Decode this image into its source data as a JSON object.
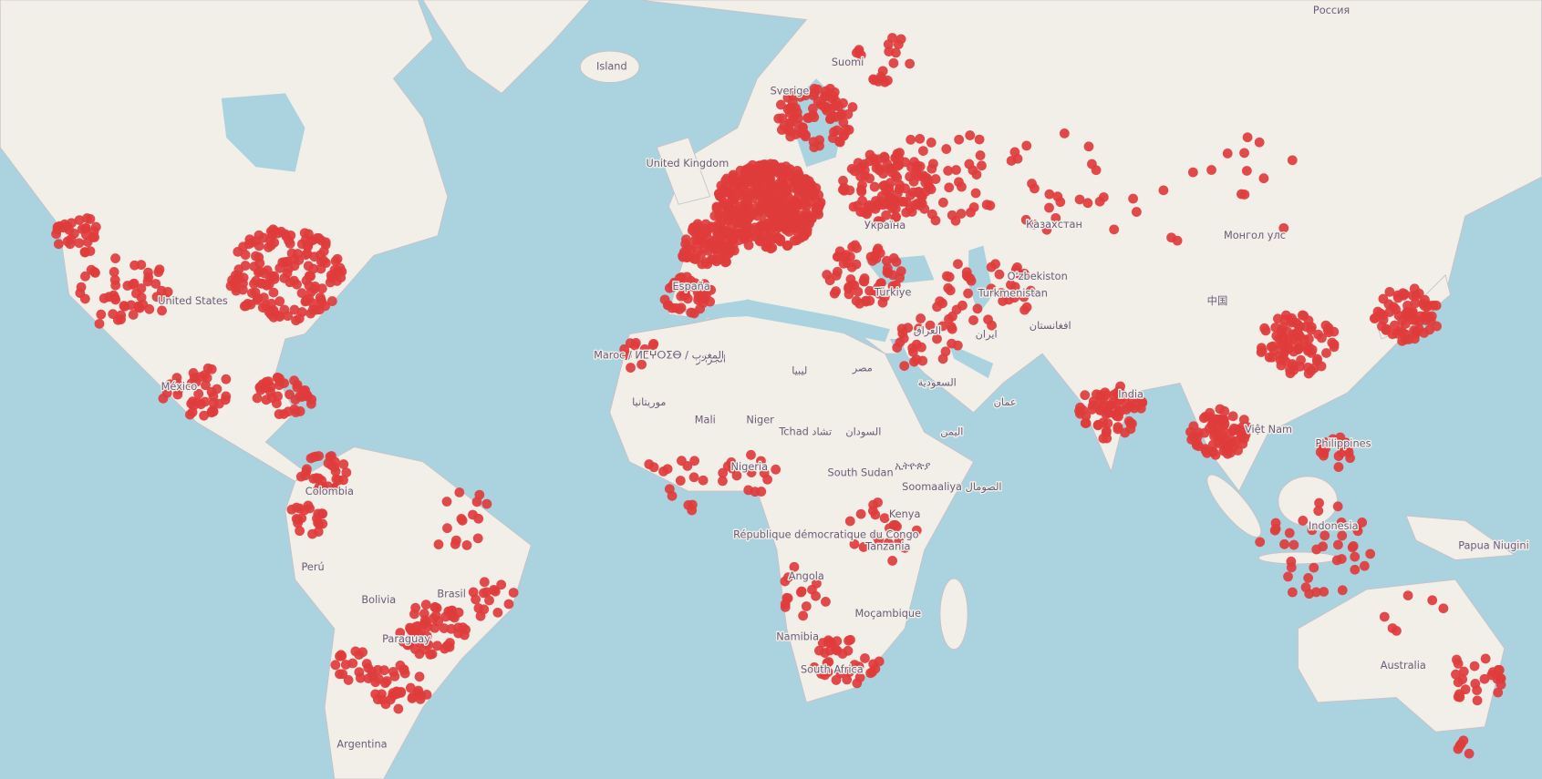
{
  "map": {
    "labels": [
      {
        "text": "Россия"
      },
      {
        "text": "Island"
      },
      {
        "text": "Suomi"
      },
      {
        "text": "Sverige"
      },
      {
        "text": "United Kingdom"
      },
      {
        "text": "Казахстан"
      },
      {
        "text": "Монгол улс"
      },
      {
        "text": "Україна"
      },
      {
        "text": "Türkiye"
      },
      {
        "text": "Turkmenistan"
      },
      {
        "text": "O'zbekiston"
      },
      {
        "text": "中国"
      },
      {
        "text": "افغانستان"
      },
      {
        "text": "ایران"
      },
      {
        "text": "العراق"
      },
      {
        "text": "مصر"
      },
      {
        "text": "ليبيا"
      },
      {
        "text": "الجزائر"
      },
      {
        "text": "Maroc / ⵍⵎⵖⵔⵉⴱ / المغرب"
      },
      {
        "text": "السعودية"
      },
      {
        "text": "عمان"
      },
      {
        "text": "اليمن"
      },
      {
        "text": "موريتانيا"
      },
      {
        "text": "Mali"
      },
      {
        "text": "Niger"
      },
      {
        "text": "Tchad تشاد"
      },
      {
        "text": "السودان"
      },
      {
        "text": "ኢትዮጵያ"
      },
      {
        "text": "Nigeria"
      },
      {
        "text": "South Sudan"
      },
      {
        "text": "Soomaaliya الصومال"
      },
      {
        "text": "Kenya"
      },
      {
        "text": "République démocratique du Congo"
      },
      {
        "text": "Tanzania"
      },
      {
        "text": "Angola"
      },
      {
        "text": "Moçambique"
      },
      {
        "text": "Namibia"
      },
      {
        "text": "South Africa"
      },
      {
        "text": "India"
      },
      {
        "text": "Việt Nam"
      },
      {
        "text": "Philippines"
      },
      {
        "text": "Indonesia"
      },
      {
        "text": "Papua Niugini"
      },
      {
        "text": "Australia"
      },
      {
        "text": "United States"
      },
      {
        "text": "México"
      },
      {
        "text": "Colombia"
      },
      {
        "text": "Perú"
      },
      {
        "text": "Bolivia"
      },
      {
        "text": "Brasil"
      },
      {
        "text": "Paraguay"
      },
      {
        "text": "Argentina"
      },
      {
        "text": "España"
      }
    ]
  }
}
